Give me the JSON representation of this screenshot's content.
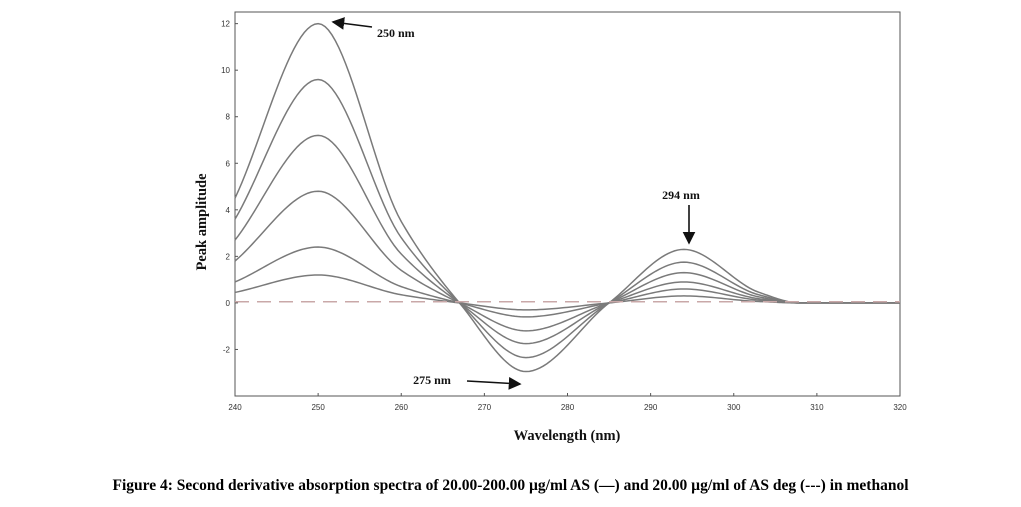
{
  "caption": "Figure 4: Second derivative absorption spectra of 20.00-200.00 µg/ml AS (—) and 20.00 µg/ml of AS deg (---) in methanol",
  "chart_data": {
    "type": "line",
    "title": "",
    "xlabel": "Wavelength (nm)",
    "ylabel": "Peak amplitude",
    "xlim": [
      240,
      320
    ],
    "ylim": [
      -4,
      12.5
    ],
    "x_ticks": [
      240,
      250,
      260,
      270,
      280,
      290,
      300,
      310,
      320
    ],
    "y_ticks": [
      -2,
      0,
      2,
      4,
      6,
      8,
      10,
      12
    ],
    "grid": false,
    "legend": "none",
    "colors": {
      "as_series": "#7a7a7a",
      "deg_series": "#c9a8a8",
      "axis": "#555555"
    },
    "shape_points": {
      "x": [
        240,
        250,
        260,
        267,
        275,
        285,
        294,
        303,
        308,
        320
      ]
    },
    "series": [
      {
        "y": [
          0.45,
          1.2,
          0.35,
          0.0,
          -0.3,
          0.0,
          0.3,
          0.06,
          0.0,
          0.0
        ]
      },
      {
        "y": [
          0.9,
          2.4,
          0.7,
          0.0,
          -0.6,
          0.0,
          0.6,
          0.12,
          0.0,
          0.0
        ]
      },
      {
        "y": [
          1.8,
          4.8,
          1.4,
          0.0,
          -1.2,
          0.0,
          0.9,
          0.18,
          0.0,
          0.0
        ]
      },
      {
        "y": [
          2.7,
          7.2,
          2.1,
          0.0,
          -1.75,
          0.0,
          1.3,
          0.26,
          0.0,
          0.0
        ]
      },
      {
        "y": [
          3.6,
          9.6,
          2.8,
          0.0,
          -2.35,
          0.0,
          1.75,
          0.35,
          0.0,
          0.0
        ]
      },
      {
        "y": [
          4.5,
          12.0,
          3.5,
          0.0,
          -2.95,
          0.0,
          2.3,
          0.46,
          0.0,
          0.0
        ]
      },
      {
        "dashed": true,
        "y": [
          0.05,
          0.05,
          0.05,
          0.05,
          0.05,
          0.05,
          0.05,
          0.05,
          0.05,
          0.05
        ]
      }
    ],
    "annotations": [
      {
        "text": "250 nm"
      },
      {
        "text": "275 nm"
      },
      {
        "text": "294 nm"
      }
    ]
  }
}
